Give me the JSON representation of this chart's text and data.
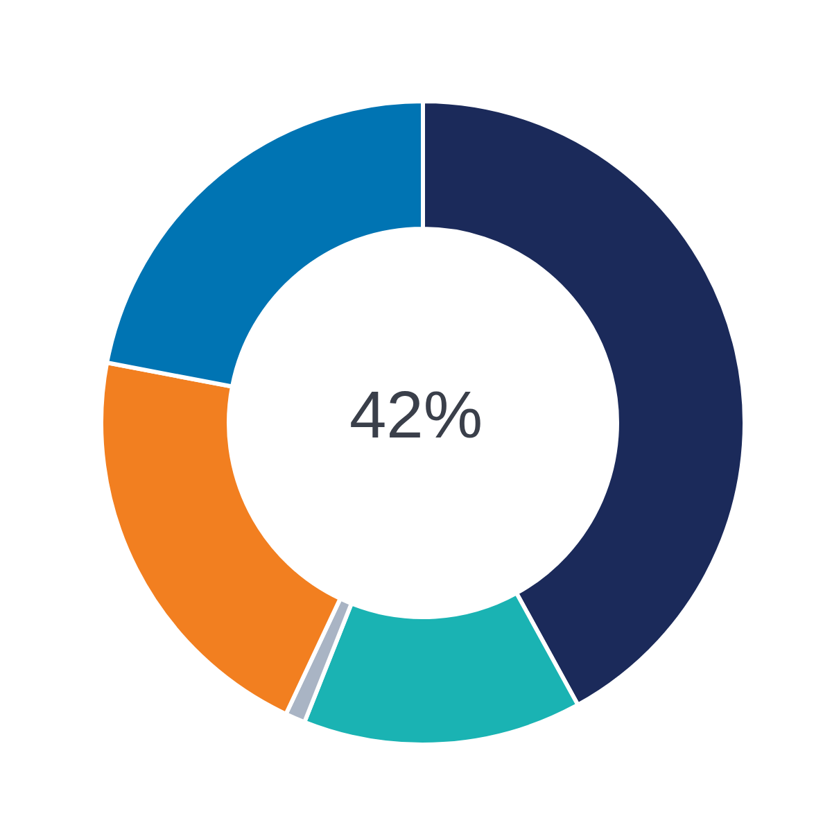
{
  "chart_data": {
    "type": "donut",
    "categories": [
      null,
      null,
      null,
      null,
      null
    ],
    "values": [
      42,
      14,
      1,
      21,
      22
    ],
    "colors": [
      "#1b2a5a",
      "#1ab3b3",
      "#a9b4c4",
      "#f27f20",
      "#0074b3"
    ],
    "annotations": [
      "42%"
    ]
  }
}
